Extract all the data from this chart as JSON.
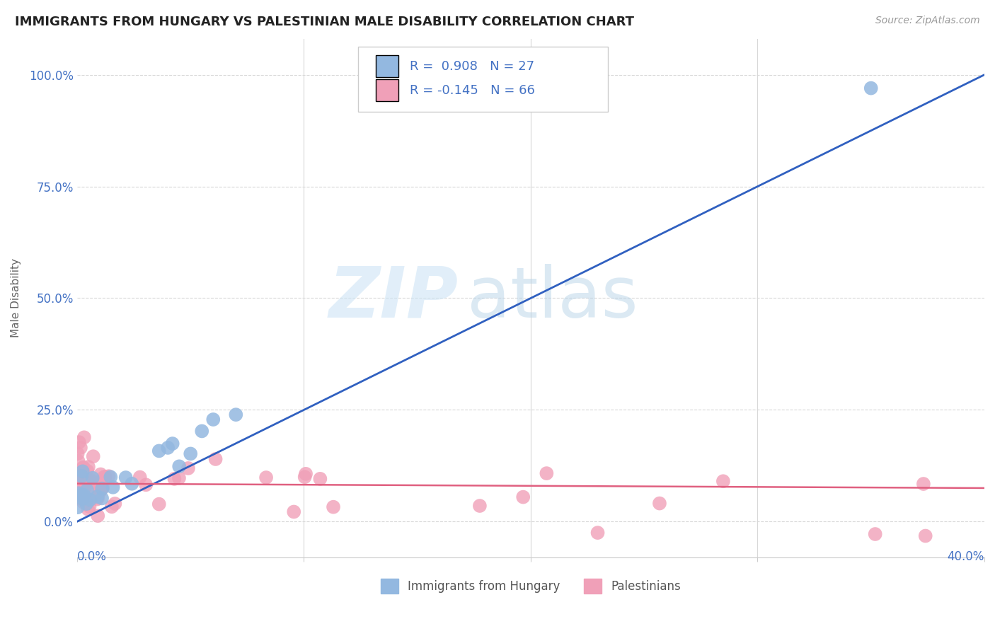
{
  "title": "IMMIGRANTS FROM HUNGARY VS PALESTINIAN MALE DISABILITY CORRELATION CHART",
  "source": "Source: ZipAtlas.com",
  "ylabel": "Male Disability",
  "xlim": [
    0.0,
    0.4
  ],
  "ylim": [
    -0.08,
    1.08
  ],
  "ytick_values": [
    0.0,
    0.25,
    0.5,
    0.75,
    1.0
  ],
  "blue_R": 0.908,
  "blue_N": 27,
  "pink_R": -0.145,
  "pink_N": 66,
  "blue_color": "#93b8e0",
  "pink_color": "#f0a0b8",
  "blue_line_color": "#3060c0",
  "pink_line_color": "#e06080",
  "watermark_zip": "ZIP",
  "watermark_atlas": "atlas",
  "legend_labels": [
    "Immigrants from Hungary",
    "Palestinians"
  ],
  "blue_line_x": [
    0.0,
    0.4
  ],
  "blue_line_y": [
    0.0,
    1.0
  ],
  "pink_line_x": [
    0.0,
    0.4
  ],
  "pink_line_y": [
    0.085,
    0.075
  ],
  "grid_color": "#d8d8d8",
  "spine_color": "#cccccc"
}
